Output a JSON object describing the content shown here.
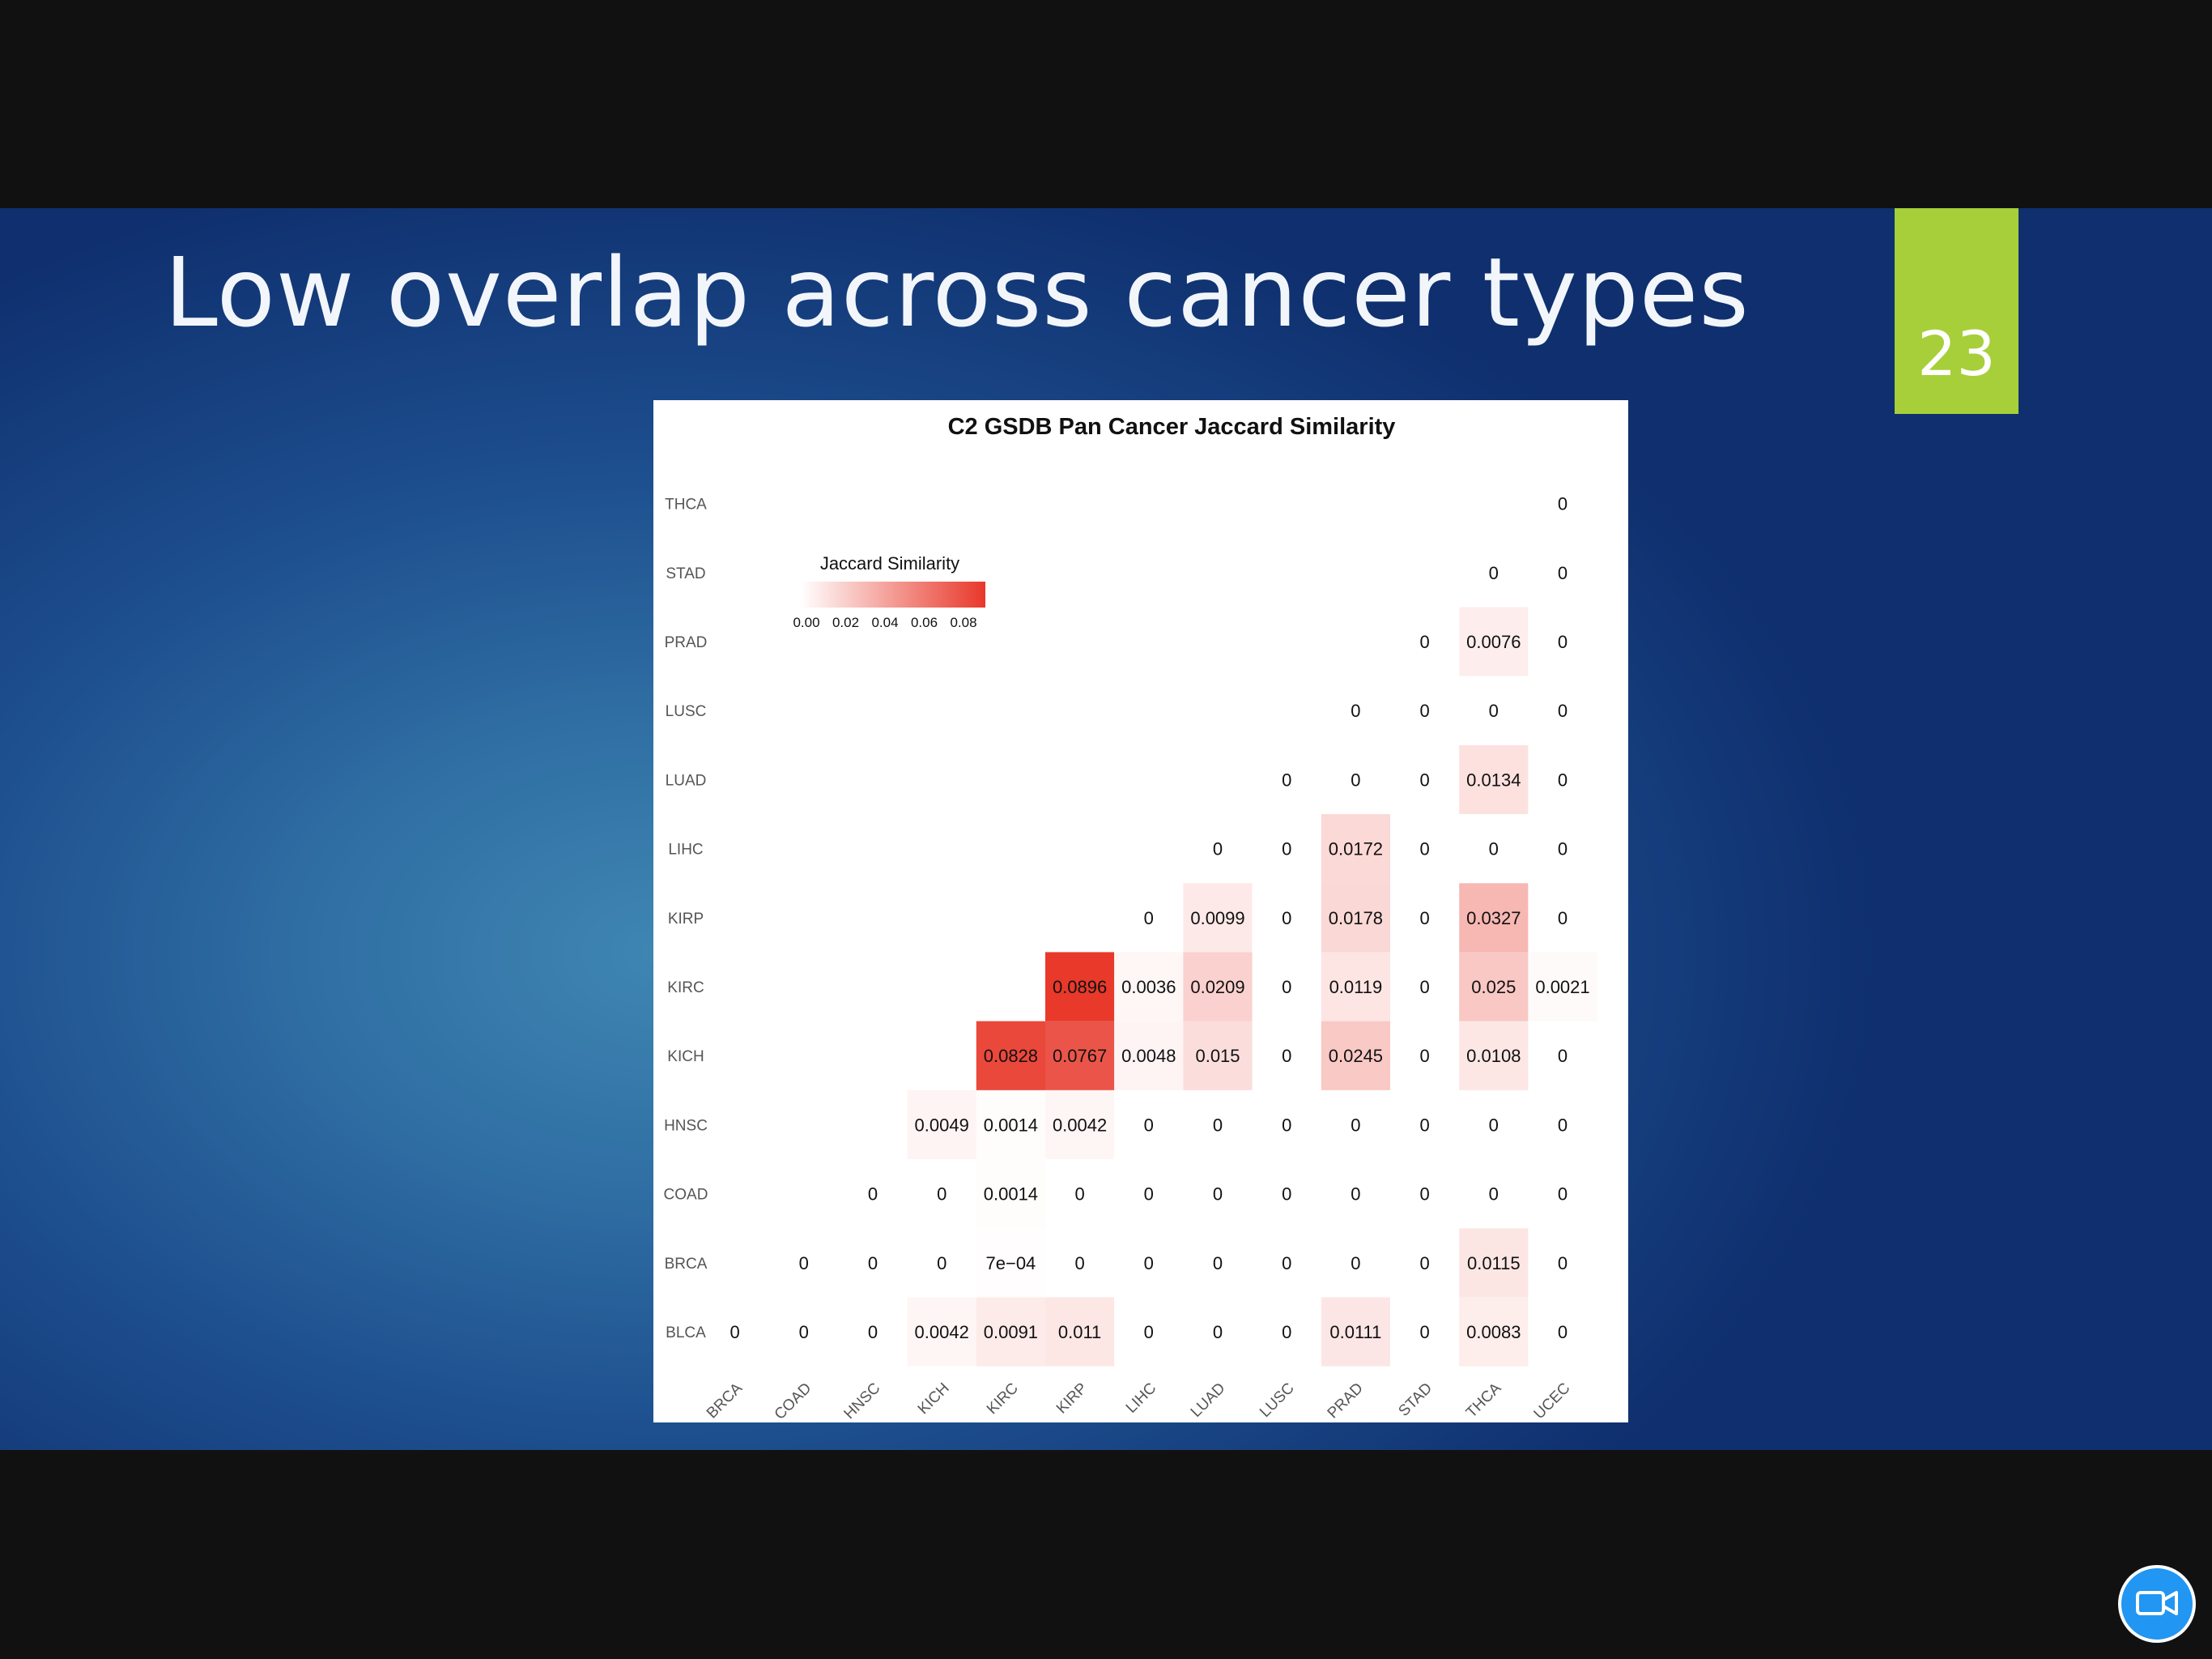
{
  "slide": {
    "title": "Low overlap across cancer types",
    "number": "23",
    "accent_color": "#a6cf39"
  },
  "chart_data": {
    "type": "heatmap",
    "title": "C2 GSDB Pan Cancer Jaccard Similarity",
    "xlabel": "",
    "ylabel": "",
    "x_categories": [
      "BRCA",
      "COAD",
      "HNSC",
      "KICH",
      "KIRC",
      "KIRP",
      "LIHC",
      "LUAD",
      "LUSC",
      "PRAD",
      "STAD",
      "THCA",
      "UCEC"
    ],
    "y_categories": [
      "BLCA",
      "BRCA",
      "COAD",
      "HNSC",
      "KICH",
      "KIRC",
      "KIRP",
      "LIHC",
      "LUAD",
      "LUSC",
      "PRAD",
      "STAD",
      "THCA"
    ],
    "legend": {
      "title": "Jaccard Similarity",
      "ticks": [
        "0.00",
        "0.02",
        "0.04",
        "0.06",
        "0.08"
      ],
      "range": [
        0,
        0.09
      ],
      "color_low": "#ffffff",
      "color_high": "#e8382a",
      "placement": "top-left"
    },
    "cells": [
      {
        "row": "BLCA",
        "col": "BRCA",
        "value": 0,
        "label": "0"
      },
      {
        "row": "BLCA",
        "col": "COAD",
        "value": 0,
        "label": "0"
      },
      {
        "row": "BLCA",
        "col": "HNSC",
        "value": 0,
        "label": "0"
      },
      {
        "row": "BLCA",
        "col": "KICH",
        "value": 0.0042,
        "label": "0.0042"
      },
      {
        "row": "BLCA",
        "col": "KIRC",
        "value": 0.0091,
        "label": "0.0091"
      },
      {
        "row": "BLCA",
        "col": "KIRP",
        "value": 0.011,
        "label": "0.011"
      },
      {
        "row": "BLCA",
        "col": "LIHC",
        "value": 0,
        "label": "0"
      },
      {
        "row": "BLCA",
        "col": "LUAD",
        "value": 0,
        "label": "0"
      },
      {
        "row": "BLCA",
        "col": "LUSC",
        "value": 0,
        "label": "0"
      },
      {
        "row": "BLCA",
        "col": "PRAD",
        "value": 0.0111,
        "label": "0.0111"
      },
      {
        "row": "BLCA",
        "col": "STAD",
        "value": 0,
        "label": "0"
      },
      {
        "row": "BLCA",
        "col": "THCA",
        "value": 0.0083,
        "label": "0.0083"
      },
      {
        "row": "BLCA",
        "col": "UCEC",
        "value": 0,
        "label": "0"
      },
      {
        "row": "BRCA",
        "col": "COAD",
        "value": 0,
        "label": "0"
      },
      {
        "row": "BRCA",
        "col": "HNSC",
        "value": 0,
        "label": "0"
      },
      {
        "row": "BRCA",
        "col": "KICH",
        "value": 0,
        "label": "0"
      },
      {
        "row": "BRCA",
        "col": "KIRC",
        "value": 0.0007,
        "label": "7e−04"
      },
      {
        "row": "BRCA",
        "col": "KIRP",
        "value": 0,
        "label": "0"
      },
      {
        "row": "BRCA",
        "col": "LIHC",
        "value": 0,
        "label": "0"
      },
      {
        "row": "BRCA",
        "col": "LUAD",
        "value": 0,
        "label": "0"
      },
      {
        "row": "BRCA",
        "col": "LUSC",
        "value": 0,
        "label": "0"
      },
      {
        "row": "BRCA",
        "col": "PRAD",
        "value": 0,
        "label": "0"
      },
      {
        "row": "BRCA",
        "col": "STAD",
        "value": 0,
        "label": "0"
      },
      {
        "row": "BRCA",
        "col": "THCA",
        "value": 0.0115,
        "label": "0.0115"
      },
      {
        "row": "BRCA",
        "col": "UCEC",
        "value": 0,
        "label": "0"
      },
      {
        "row": "COAD",
        "col": "HNSC",
        "value": 0,
        "label": "0"
      },
      {
        "row": "COAD",
        "col": "KICH",
        "value": 0,
        "label": "0"
      },
      {
        "row": "COAD",
        "col": "KIRC",
        "value": 0.0014,
        "label": "0.0014"
      },
      {
        "row": "COAD",
        "col": "KIRP",
        "value": 0,
        "label": "0"
      },
      {
        "row": "COAD",
        "col": "LIHC",
        "value": 0,
        "label": "0"
      },
      {
        "row": "COAD",
        "col": "LUAD",
        "value": 0,
        "label": "0"
      },
      {
        "row": "COAD",
        "col": "LUSC",
        "value": 0,
        "label": "0"
      },
      {
        "row": "COAD",
        "col": "PRAD",
        "value": 0,
        "label": "0"
      },
      {
        "row": "COAD",
        "col": "STAD",
        "value": 0,
        "label": "0"
      },
      {
        "row": "COAD",
        "col": "THCA",
        "value": 0,
        "label": "0"
      },
      {
        "row": "COAD",
        "col": "UCEC",
        "value": 0,
        "label": "0"
      },
      {
        "row": "HNSC",
        "col": "KICH",
        "value": 0.0049,
        "label": "0.0049"
      },
      {
        "row": "HNSC",
        "col": "KIRC",
        "value": 0.0014,
        "label": "0.0014"
      },
      {
        "row": "HNSC",
        "col": "KIRP",
        "value": 0.0042,
        "label": "0.0042"
      },
      {
        "row": "HNSC",
        "col": "LIHC",
        "value": 0,
        "label": "0"
      },
      {
        "row": "HNSC",
        "col": "LUAD",
        "value": 0,
        "label": "0"
      },
      {
        "row": "HNSC",
        "col": "LUSC",
        "value": 0,
        "label": "0"
      },
      {
        "row": "HNSC",
        "col": "PRAD",
        "value": 0,
        "label": "0"
      },
      {
        "row": "HNSC",
        "col": "STAD",
        "value": 0,
        "label": "0"
      },
      {
        "row": "HNSC",
        "col": "THCA",
        "value": 0,
        "label": "0"
      },
      {
        "row": "HNSC",
        "col": "UCEC",
        "value": 0,
        "label": "0"
      },
      {
        "row": "KICH",
        "col": "KIRC",
        "value": 0.0828,
        "label": "0.0828"
      },
      {
        "row": "KICH",
        "col": "KIRP",
        "value": 0.0767,
        "label": "0.0767"
      },
      {
        "row": "KICH",
        "col": "LIHC",
        "value": 0.0048,
        "label": "0.0048"
      },
      {
        "row": "KICH",
        "col": "LUAD",
        "value": 0.015,
        "label": "0.015"
      },
      {
        "row": "KICH",
        "col": "LUSC",
        "value": 0,
        "label": "0"
      },
      {
        "row": "KICH",
        "col": "PRAD",
        "value": 0.0245,
        "label": "0.0245"
      },
      {
        "row": "KICH",
        "col": "STAD",
        "value": 0,
        "label": "0"
      },
      {
        "row": "KICH",
        "col": "THCA",
        "value": 0.0108,
        "label": "0.0108"
      },
      {
        "row": "KICH",
        "col": "UCEC",
        "value": 0,
        "label": "0"
      },
      {
        "row": "KIRC",
        "col": "KIRP",
        "value": 0.0896,
        "label": "0.0896"
      },
      {
        "row": "KIRC",
        "col": "LIHC",
        "value": 0.0036,
        "label": "0.0036"
      },
      {
        "row": "KIRC",
        "col": "LUAD",
        "value": 0.0209,
        "label": "0.0209"
      },
      {
        "row": "KIRC",
        "col": "LUSC",
        "value": 0,
        "label": "0"
      },
      {
        "row": "KIRC",
        "col": "PRAD",
        "value": 0.0119,
        "label": "0.0119"
      },
      {
        "row": "KIRC",
        "col": "STAD",
        "value": 0,
        "label": "0"
      },
      {
        "row": "KIRC",
        "col": "THCA",
        "value": 0.025,
        "label": "0.025"
      },
      {
        "row": "KIRC",
        "col": "UCEC",
        "value": 0.0021,
        "label": "0.0021"
      },
      {
        "row": "KIRP",
        "col": "LIHC",
        "value": 0,
        "label": "0"
      },
      {
        "row": "KIRP",
        "col": "LUAD",
        "value": 0.0099,
        "label": "0.0099"
      },
      {
        "row": "KIRP",
        "col": "LUSC",
        "value": 0,
        "label": "0"
      },
      {
        "row": "KIRP",
        "col": "PRAD",
        "value": 0.0178,
        "label": "0.0178"
      },
      {
        "row": "KIRP",
        "col": "STAD",
        "value": 0,
        "label": "0"
      },
      {
        "row": "KIRP",
        "col": "THCA",
        "value": 0.0327,
        "label": "0.0327"
      },
      {
        "row": "KIRP",
        "col": "UCEC",
        "value": 0,
        "label": "0"
      },
      {
        "row": "LIHC",
        "col": "LUAD",
        "value": 0,
        "label": "0"
      },
      {
        "row": "LIHC",
        "col": "LUSC",
        "value": 0,
        "label": "0"
      },
      {
        "row": "LIHC",
        "col": "PRAD",
        "value": 0.0172,
        "label": "0.0172"
      },
      {
        "row": "LIHC",
        "col": "STAD",
        "value": 0,
        "label": "0"
      },
      {
        "row": "LIHC",
        "col": "THCA",
        "value": 0,
        "label": "0"
      },
      {
        "row": "LIHC",
        "col": "UCEC",
        "value": 0,
        "label": "0"
      },
      {
        "row": "LUAD",
        "col": "LUSC",
        "value": 0,
        "label": "0"
      },
      {
        "row": "LUAD",
        "col": "PRAD",
        "value": 0,
        "label": "0"
      },
      {
        "row": "LUAD",
        "col": "STAD",
        "value": 0,
        "label": "0"
      },
      {
        "row": "LUAD",
        "col": "THCA",
        "value": 0.0134,
        "label": "0.0134"
      },
      {
        "row": "LUAD",
        "col": "UCEC",
        "value": 0,
        "label": "0"
      },
      {
        "row": "LUSC",
        "col": "PRAD",
        "value": 0,
        "label": "0"
      },
      {
        "row": "LUSC",
        "col": "STAD",
        "value": 0,
        "label": "0"
      },
      {
        "row": "LUSC",
        "col": "THCA",
        "value": 0,
        "label": "0"
      },
      {
        "row": "LUSC",
        "col": "UCEC",
        "value": 0,
        "label": "0"
      },
      {
        "row": "PRAD",
        "col": "STAD",
        "value": 0,
        "label": "0"
      },
      {
        "row": "PRAD",
        "col": "THCA",
        "value": 0.0076,
        "label": "0.0076"
      },
      {
        "row": "PRAD",
        "col": "UCEC",
        "value": 0,
        "label": "0"
      },
      {
        "row": "STAD",
        "col": "THCA",
        "value": 0,
        "label": "0"
      },
      {
        "row": "STAD",
        "col": "UCEC",
        "value": 0,
        "label": "0"
      },
      {
        "row": "THCA",
        "col": "UCEC",
        "value": 0,
        "label": "0"
      }
    ]
  },
  "controls": {
    "camera_icon": "video-camera-icon",
    "camera_color": "#2196f3"
  }
}
